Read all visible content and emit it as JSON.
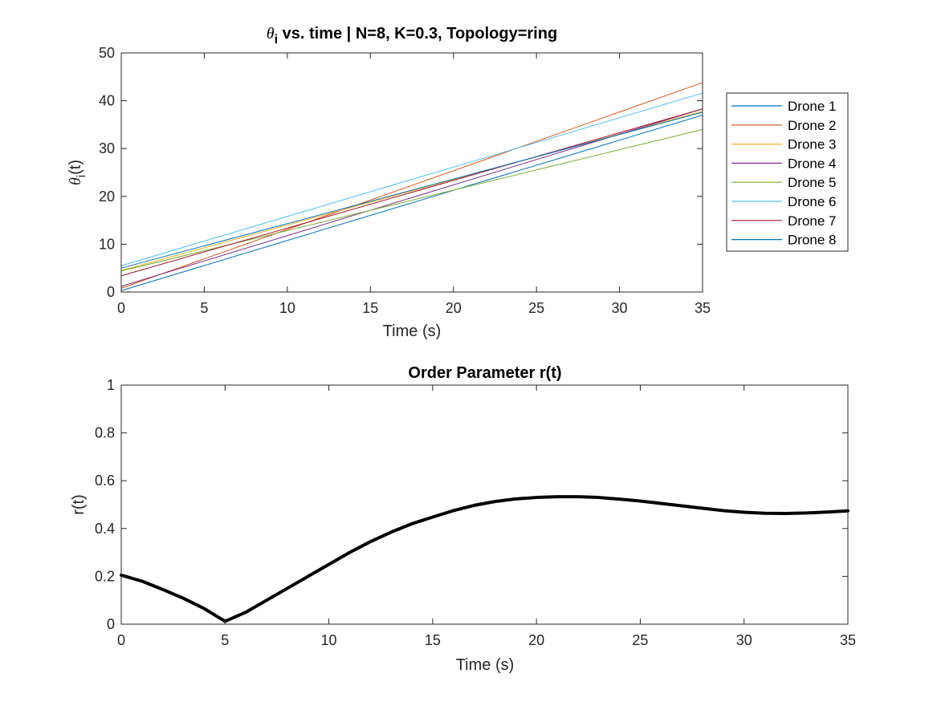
{
  "chart_data": [
    {
      "type": "line",
      "title_prefix": "θ",
      "title_subscript": "i",
      "title": " vs. time | N=8, K=0.3, Topology=ring",
      "xlabel": "Time (s)",
      "ylabel_prefix": "θ",
      "ylabel_subscript": "i",
      "ylabel_suffix": "(t)",
      "xlim": [
        0,
        35
      ],
      "ylim": [
        0,
        50
      ],
      "xticks": [
        "0",
        "5",
        "10",
        "15",
        "20",
        "25",
        "30",
        "35"
      ],
      "yticks": [
        "0",
        "10",
        "20",
        "30",
        "40",
        "50"
      ],
      "grid": false,
      "legend_position": "outside-right",
      "series": [
        {
          "name": "Drone 1",
          "color": "#0072BD",
          "x": [
            0,
            35
          ],
          "y": [
            0.3,
            37.0
          ]
        },
        {
          "name": "Drone 2",
          "color": "#D95319",
          "x": [
            0,
            35
          ],
          "y": [
            0.8,
            43.8
          ]
        },
        {
          "name": "Drone 3",
          "color": "#EDB120",
          "x": [
            0,
            35
          ],
          "y": [
            4.5,
            37.8
          ]
        },
        {
          "name": "Drone 4",
          "color": "#7E2F8E",
          "x": [
            0,
            35
          ],
          "y": [
            1.2,
            38.3
          ]
        },
        {
          "name": "Drone 5",
          "color": "#77AC30",
          "x": [
            0,
            35
          ],
          "y": [
            4.4,
            34.0
          ]
        },
        {
          "name": "Drone 6",
          "color": "#4DBEEE",
          "x": [
            0,
            35
          ],
          "y": [
            5.5,
            41.6
          ]
        },
        {
          "name": "Drone 7",
          "color": "#A2142F",
          "x": [
            0,
            35
          ],
          "y": [
            3.4,
            38.3
          ]
        },
        {
          "name": "Drone 8",
          "color": "#0072BD",
          "x": [
            0,
            35
          ],
          "y": [
            5.0,
            37.6
          ]
        }
      ]
    },
    {
      "type": "line",
      "title": "Order Parameter r(t)",
      "xlabel": "Time (s)",
      "ylabel": "r(t)",
      "xlim": [
        0,
        35
      ],
      "ylim": [
        0,
        1
      ],
      "xticks": [
        "0",
        "5",
        "10",
        "15",
        "20",
        "25",
        "30",
        "35"
      ],
      "yticks": [
        "0",
        "0.2",
        "0.4",
        "0.6",
        "0.8",
        "1"
      ],
      "grid": false,
      "series": [
        {
          "color": "#000000",
          "x": [
            0,
            1,
            2,
            3,
            4,
            5,
            6,
            7,
            8,
            9,
            10,
            11,
            12,
            13,
            14,
            15,
            16,
            17,
            18,
            19,
            20,
            21,
            22,
            23,
            24,
            25,
            26,
            27,
            28,
            29,
            30,
            31,
            32,
            33,
            34,
            35
          ],
          "y": [
            0.205,
            0.18,
            0.145,
            0.108,
            0.065,
            0.012,
            0.05,
            0.1,
            0.15,
            0.2,
            0.25,
            0.3,
            0.345,
            0.385,
            0.42,
            0.448,
            0.475,
            0.497,
            0.513,
            0.524,
            0.53,
            0.533,
            0.533,
            0.53,
            0.523,
            0.515,
            0.505,
            0.495,
            0.485,
            0.475,
            0.468,
            0.464,
            0.463,
            0.465,
            0.469,
            0.474
          ]
        }
      ]
    }
  ]
}
